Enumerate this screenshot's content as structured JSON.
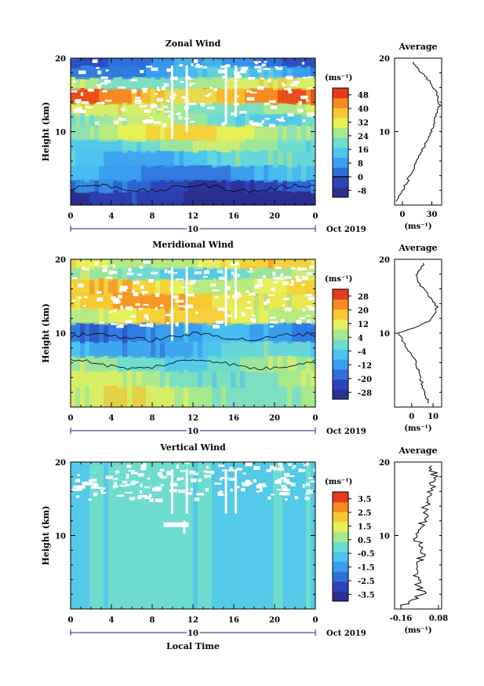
{
  "colormap": [
    "#2b2f8f",
    "#2c44b8",
    "#2f6fdc",
    "#3b9ef0",
    "#4bc4f0",
    "#6fdcd0",
    "#a8e88c",
    "#e6f05a",
    "#f8c830",
    "#f58a22",
    "#e63a1a"
  ],
  "panels": [
    {
      "title": "Zonal Wind",
      "ylabel": "Height (km)",
      "y_ticks": [
        "20",
        "10"
      ],
      "x_ticks": [
        "0",
        "4",
        "8",
        "12",
        "16",
        "20",
        "0"
      ],
      "date_tick": "10",
      "date_label": "Oct 2019",
      "cbar_unit": "(ms⁻¹)",
      "cbar_ticks": [
        "48",
        "40",
        "32",
        "24",
        "16",
        "8",
        "0",
        "-8"
      ],
      "avg_title": "Average",
      "avg_y_ticks": [
        "20",
        "10"
      ],
      "avg_x_ticks": [
        "0",
        "30"
      ],
      "avg_unit": "(ms⁻¹)"
    },
    {
      "title": "Meridional Wind",
      "ylabel": "Height (km)",
      "y_ticks": [
        "20",
        "10"
      ],
      "x_ticks": [
        "0",
        "4",
        "8",
        "12",
        "16",
        "20",
        "0"
      ],
      "date_tick": "10",
      "date_label": "Oct 2019",
      "cbar_unit": "(ms⁻¹)",
      "cbar_ticks": [
        "28",
        "20",
        "12",
        "4",
        "-4",
        "-12",
        "-20",
        "-28"
      ],
      "avg_title": "Average",
      "avg_y_ticks": [
        "20",
        "10"
      ],
      "avg_x_ticks": [
        "0",
        "10"
      ],
      "avg_unit": "(ms⁻¹)"
    },
    {
      "title": "Vertical Wind",
      "ylabel": "Height (km)",
      "y_ticks": [
        "20",
        "10"
      ],
      "x_ticks": [
        "0",
        "4",
        "8",
        "12",
        "16",
        "20",
        "0"
      ],
      "date_tick": "10",
      "date_label": "Oct 2019",
      "cbar_unit": "(ms⁻¹)",
      "cbar_ticks": [
        "3.5",
        "2.5",
        "1.5",
        "0.5",
        "-0.5",
        "-1.5",
        "-2.5",
        "-3.5"
      ],
      "avg_title": "Average",
      "avg_y_ticks": [
        "20",
        "10"
      ],
      "avg_x_ticks": [
        "-0.16",
        "0.08"
      ],
      "avg_unit": "(ms⁻¹)",
      "xlabel": "Local Time"
    }
  ],
  "chart_data": [
    {
      "type": "heatmap",
      "title": "Zonal Wind",
      "xlabel": "",
      "ylabel": "Height (km)",
      "x_range_hours": [
        0,
        24
      ],
      "ylim": [
        0,
        20
      ],
      "colorbar_range": [
        -8,
        48
      ],
      "colorbar_unit": "ms-1",
      "bands": [
        {
          "z": [
            0,
            2
          ],
          "v": -6
        },
        {
          "z": [
            2,
            3.5
          ],
          "v": 2
        },
        {
          "z": [
            3.5,
            5.5
          ],
          "v": 10
        },
        {
          "z": [
            5.5,
            7.5
          ],
          "v": 16
        },
        {
          "z": [
            7.5,
            9
          ],
          "v": 22
        },
        {
          "z": [
            9,
            11
          ],
          "v": 28
        },
        {
          "z": [
            11,
            12.5
          ],
          "v": 22
        },
        {
          "z": [
            12.5,
            14
          ],
          "v": 26
        },
        {
          "z": [
            14,
            16
          ],
          "v": 38
        },
        {
          "z": [
            16,
            17.5
          ],
          "v": 26
        },
        {
          "z": [
            17.5,
            19
          ],
          "v": 12
        },
        {
          "z": [
            19,
            20
          ],
          "v": 6
        }
      ],
      "average_profile": {
        "x_label": "(ms-1)",
        "xlim": [
          -8,
          40
        ],
        "height": [
          0.5,
          2,
          4,
          6,
          8,
          10,
          12,
          13.5,
          15,
          16.5,
          18,
          19.5
        ],
        "value": [
          -6,
          0,
          8,
          14,
          22,
          30,
          34,
          38,
          36,
          30,
          20,
          10
        ]
      }
    },
    {
      "type": "heatmap",
      "title": "Meridional Wind",
      "xlabel": "",
      "ylabel": "Height (km)",
      "x_range_hours": [
        0,
        24
      ],
      "ylim": [
        0,
        20
      ],
      "colorbar_range": [
        -28,
        28
      ],
      "colorbar_unit": "ms-1",
      "bands": [
        {
          "z": [
            0,
            3
          ],
          "v": 6
        },
        {
          "z": [
            3,
            5
          ],
          "v": 4
        },
        {
          "z": [
            5,
            7
          ],
          "v": 2
        },
        {
          "z": [
            7,
            9
          ],
          "v": -6
        },
        {
          "z": [
            9,
            11.5
          ],
          "v": -12
        },
        {
          "z": [
            11.5,
            13.5
          ],
          "v": 10
        },
        {
          "z": [
            13.5,
            15.5
          ],
          "v": 14
        },
        {
          "z": [
            15.5,
            17.5
          ],
          "v": 12
        },
        {
          "z": [
            17.5,
            19
          ],
          "v": 2
        },
        {
          "z": [
            19,
            20
          ],
          "v": 10
        }
      ],
      "average_profile": {
        "x_label": "(ms-1)",
        "xlim": [
          -8,
          14
        ],
        "height": [
          0.5,
          2,
          4,
          6,
          8,
          10,
          11,
          12,
          13.5,
          15,
          16.5,
          18,
          19.5
        ],
        "value": [
          8,
          6,
          4,
          2,
          -2,
          -6,
          4,
          10,
          12,
          8,
          4,
          2,
          6
        ]
      }
    },
    {
      "type": "heatmap",
      "title": "Vertical Wind",
      "xlabel": "Local Time",
      "ylabel": "Height (km)",
      "x_range_hours": [
        0,
        24
      ],
      "ylim": [
        0,
        20
      ],
      "colorbar_range": [
        -3.5,
        3.5
      ],
      "colorbar_unit": "ms-1",
      "bands": [
        {
          "z": [
            0,
            20
          ],
          "v": -0.3
        }
      ],
      "average_profile": {
        "x_label": "(ms-1)",
        "xlim": [
          -0.2,
          0.1
        ],
        "height": [
          0.5,
          2,
          4,
          6,
          8,
          10,
          12,
          14,
          16,
          18,
          19.5
        ],
        "value": [
          -0.14,
          -0.02,
          -0.06,
          -0.04,
          -0.02,
          -0.07,
          -0.01,
          0.0,
          0.03,
          0.05,
          0.04
        ]
      }
    }
  ]
}
